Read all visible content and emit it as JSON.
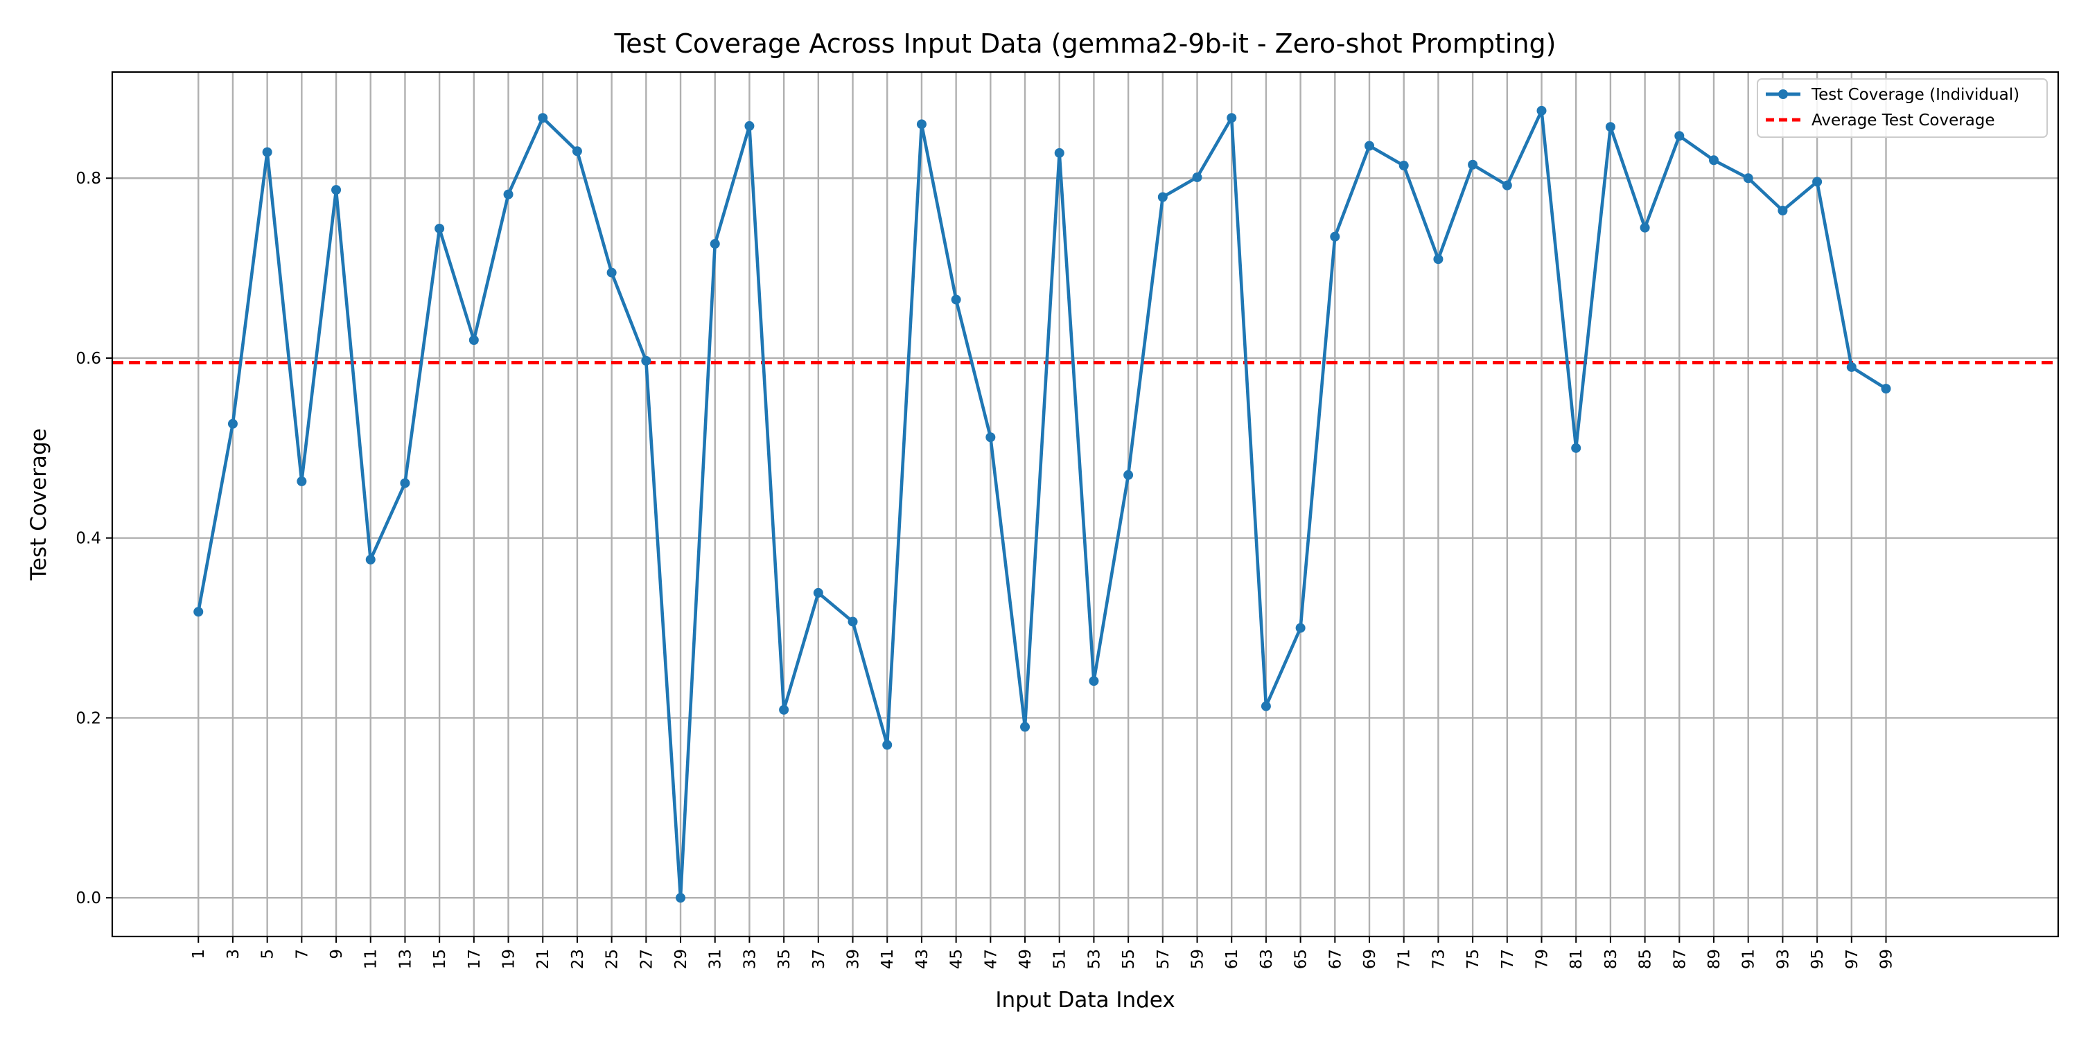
{
  "chart_data": {
    "type": "line",
    "title": "Test Coverage Across Input Data (gemma2-9b-it - Zero-shot Prompting)",
    "xlabel": "Input Data Index",
    "ylabel": "Test Coverage",
    "xlim": [
      -4,
      109
    ],
    "ylim": [
      -0.043,
      0.918
    ],
    "grid": true,
    "legend_position": "top-right",
    "x": [
      1,
      3,
      5,
      7,
      9,
      11,
      13,
      15,
      17,
      19,
      21,
      23,
      25,
      27,
      29,
      31,
      33,
      35,
      37,
      39,
      41,
      43,
      45,
      47,
      49,
      51,
      53,
      55,
      57,
      59,
      61,
      63,
      65,
      67,
      69,
      71,
      73,
      75,
      77,
      79,
      81,
      83,
      85,
      87,
      89,
      91,
      93,
      95,
      97,
      99
    ],
    "x_ticks": [
      "1",
      "3",
      "5",
      "7",
      "9",
      "11",
      "13",
      "15",
      "17",
      "19",
      "21",
      "23",
      "25",
      "27",
      "29",
      "31",
      "33",
      "35",
      "37",
      "39",
      "41",
      "43",
      "45",
      "47",
      "49",
      "51",
      "53",
      "55",
      "57",
      "59",
      "61",
      "63",
      "65",
      "67",
      "69",
      "71",
      "73",
      "75",
      "77",
      "79",
      "81",
      "83",
      "85",
      "87",
      "89",
      "91",
      "93",
      "95",
      "97",
      "99"
    ],
    "y_ticks": [
      "0.0",
      "0.2",
      "0.4",
      "0.6",
      "0.8"
    ],
    "series": [
      {
        "name": "Test Coverage (Individual)",
        "color": "#1f77b4",
        "marker": "circle",
        "values": [
          0.318,
          0.527,
          0.829,
          0.463,
          0.787,
          0.376,
          0.461,
          0.744,
          0.62,
          0.782,
          0.867,
          0.83,
          0.695,
          0.597,
          0.0,
          0.727,
          0.858,
          0.209,
          0.339,
          0.307,
          0.17,
          0.86,
          0.665,
          0.512,
          0.19,
          0.828,
          0.241,
          0.47,
          0.779,
          0.801,
          0.867,
          0.213,
          0.3,
          0.735,
          0.836,
          0.814,
          0.71,
          0.815,
          0.792,
          0.875,
          0.5,
          0.857,
          0.745,
          0.847,
          0.82,
          0.8,
          0.764,
          0.796,
          0.59,
          0.566
        ]
      }
    ],
    "reference_lines": [
      {
        "name": "Average Test Coverage",
        "color": "#ff0000",
        "style": "dashed",
        "y": 0.595
      }
    ]
  }
}
